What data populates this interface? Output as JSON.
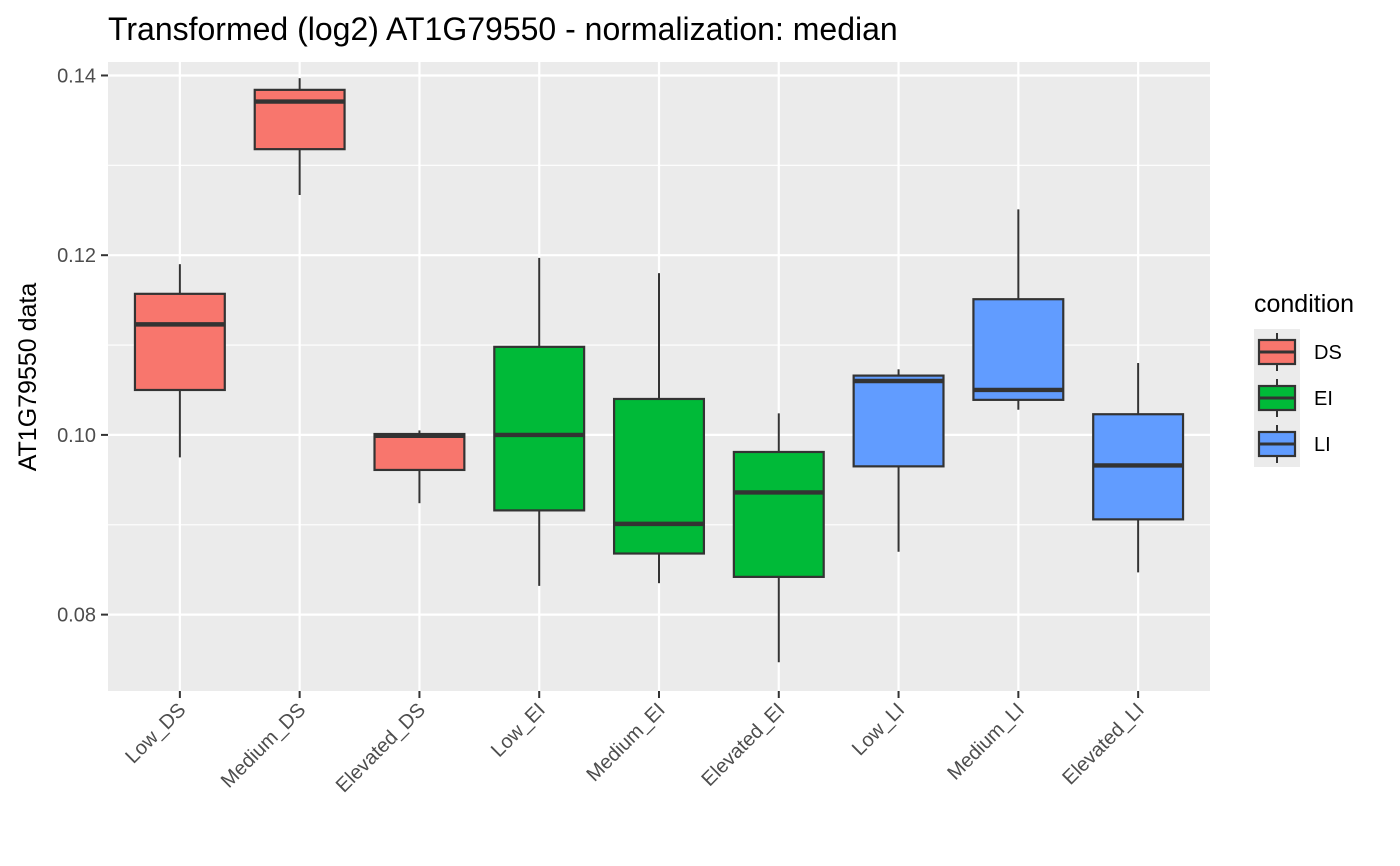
{
  "chart_data": {
    "type": "box",
    "title": "Transformed (log2) AT1G79550 - normalization: median",
    "xlabel": "",
    "ylabel": "AT1G79550 data",
    "ylim": [
      0.0715,
      0.1415
    ],
    "yticks": [
      0.08,
      0.1,
      0.12,
      0.14
    ],
    "ytick_labels": [
      "0.08",
      "0.10",
      "0.12",
      "0.14"
    ],
    "grid": true,
    "legend": {
      "title": "condition",
      "position": "right",
      "entries": [
        {
          "label": "DS",
          "color": "#F8766D"
        },
        {
          "label": "EI",
          "color": "#00BA38"
        },
        {
          "label": "LI",
          "color": "#619CFF"
        }
      ]
    },
    "categories": [
      "Low_DS",
      "Medium_DS",
      "Elevated_DS",
      "Low_EI",
      "Medium_EI",
      "Elevated_EI",
      "Low_LI",
      "Medium_LI",
      "Elevated_LI"
    ],
    "boxes": [
      {
        "category": "Low_DS",
        "condition": "DS",
        "min": 0.0975,
        "q1": 0.105,
        "median": 0.1123,
        "q3": 0.1157,
        "max": 0.119
      },
      {
        "category": "Medium_DS",
        "condition": "DS",
        "min": 0.1267,
        "q1": 0.1318,
        "median": 0.1371,
        "q3": 0.1384,
        "max": 0.1397
      },
      {
        "category": "Elevated_DS",
        "condition": "DS",
        "min": 0.0924,
        "q1": 0.0961,
        "median": 0.0999,
        "q3": 0.1001,
        "max": 0.1005
      },
      {
        "category": "Low_EI",
        "condition": "EI",
        "min": 0.0832,
        "q1": 0.0916,
        "median": 0.1,
        "q3": 0.1098,
        "max": 0.1197
      },
      {
        "category": "Medium_EI",
        "condition": "EI",
        "min": 0.0835,
        "q1": 0.0868,
        "median": 0.0901,
        "q3": 0.104,
        "max": 0.118
      },
      {
        "category": "Elevated_EI",
        "condition": "EI",
        "min": 0.0747,
        "q1": 0.0842,
        "median": 0.0936,
        "q3": 0.0981,
        "max": 0.1024
      },
      {
        "category": "Low_LI",
        "condition": "LI",
        "min": 0.087,
        "q1": 0.0965,
        "median": 0.106,
        "q3": 0.1066,
        "max": 0.1073
      },
      {
        "category": "Medium_LI",
        "condition": "LI",
        "min": 0.1028,
        "q1": 0.1039,
        "median": 0.105,
        "q3": 0.1151,
        "max": 0.1251
      },
      {
        "category": "Elevated_LI",
        "condition": "LI",
        "min": 0.0847,
        "q1": 0.0906,
        "median": 0.0966,
        "q3": 0.1023,
        "max": 0.108
      }
    ]
  },
  "colors": {
    "panel_background": "#EBEBEB",
    "grid_major": "#FFFFFF",
    "box_outline": "#333333",
    "DS": "#F8766D",
    "EI": "#00BA38",
    "LI": "#619CFF"
  }
}
